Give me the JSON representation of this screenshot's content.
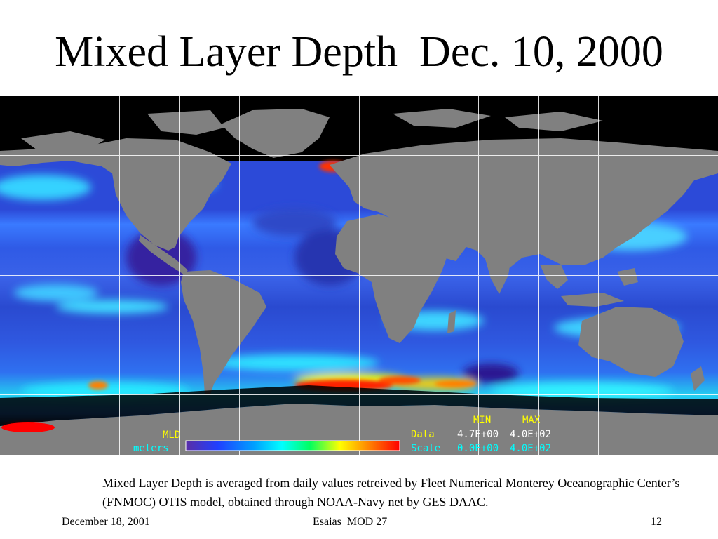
{
  "slide": {
    "title": "Mixed Layer Depth  Dec. 10, 2000",
    "caption": "Mixed Layer Depth is averaged from daily values retreived by Fleet Numerical Monterey Oceanographic Center’s (FNMOC) OTIS model, obtained through NOAA-Navy net by GES DAAC.",
    "footer": {
      "date": "December 18, 2001",
      "center": "Esaias  MOD 27",
      "page_number": "12"
    }
  },
  "map": {
    "legend": {
      "variable": "MLD",
      "units": "meters",
      "min_header": "MIN",
      "max_header": "MAX",
      "data_label": "Data",
      "data_min": "4.7E+00",
      "data_max": "4.0E+02",
      "scale_label": "Scale",
      "scale_min": "0.0E+00",
      "scale_max": "4.0E+02"
    },
    "colors": {
      "land": "#808080",
      "no_data": "#000000",
      "grid": "#ffffff",
      "legend_yellow": "#ffff00",
      "legend_cyan": "#00ffff",
      "colorbar": [
        "#5a2ea6",
        "#2040ff",
        "#00a0ff",
        "#00ffff",
        "#00ff60",
        "#ffff00",
        "#ff8000",
        "#ff0000"
      ]
    }
  }
}
